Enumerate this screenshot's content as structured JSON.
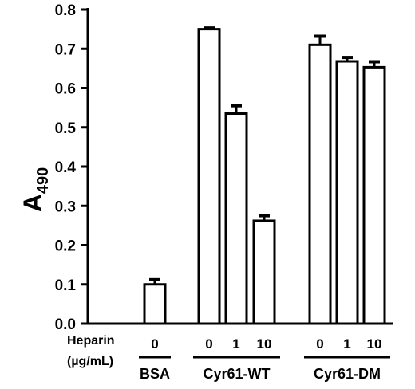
{
  "chart_data": {
    "type": "bar",
    "ylabel": "A",
    "ylabel_subscript": "490",
    "ylim": [
      0.0,
      0.8
    ],
    "yticks": [
      "0.0",
      "0.1",
      "0.2",
      "0.3",
      "0.4",
      "0.5",
      "0.6",
      "0.7",
      "0.8"
    ],
    "row_label_line1": "Heparin",
    "row_label_line2": "(µg/mL)",
    "groups": [
      {
        "name": "BSA",
        "bars": [
          {
            "heparin": "0",
            "value": 0.1,
            "error": 0.012
          }
        ]
      },
      {
        "name": "Cyr61-WT",
        "bars": [
          {
            "heparin": "0",
            "value": 0.75,
            "error": 0.003
          },
          {
            "heparin": "1",
            "value": 0.535,
            "error": 0.02
          },
          {
            "heparin": "10",
            "value": 0.262,
            "error": 0.013
          }
        ]
      },
      {
        "name": "Cyr61-DM",
        "bars": [
          {
            "heparin": "0",
            "value": 0.71,
            "error": 0.022
          },
          {
            "heparin": "1",
            "value": 0.668,
            "error": 0.01
          },
          {
            "heparin": "10",
            "value": 0.653,
            "error": 0.014
          }
        ]
      }
    ],
    "colors": {
      "bar_fill": "#ffffff",
      "stroke": "#000000"
    },
    "grid": false
  }
}
